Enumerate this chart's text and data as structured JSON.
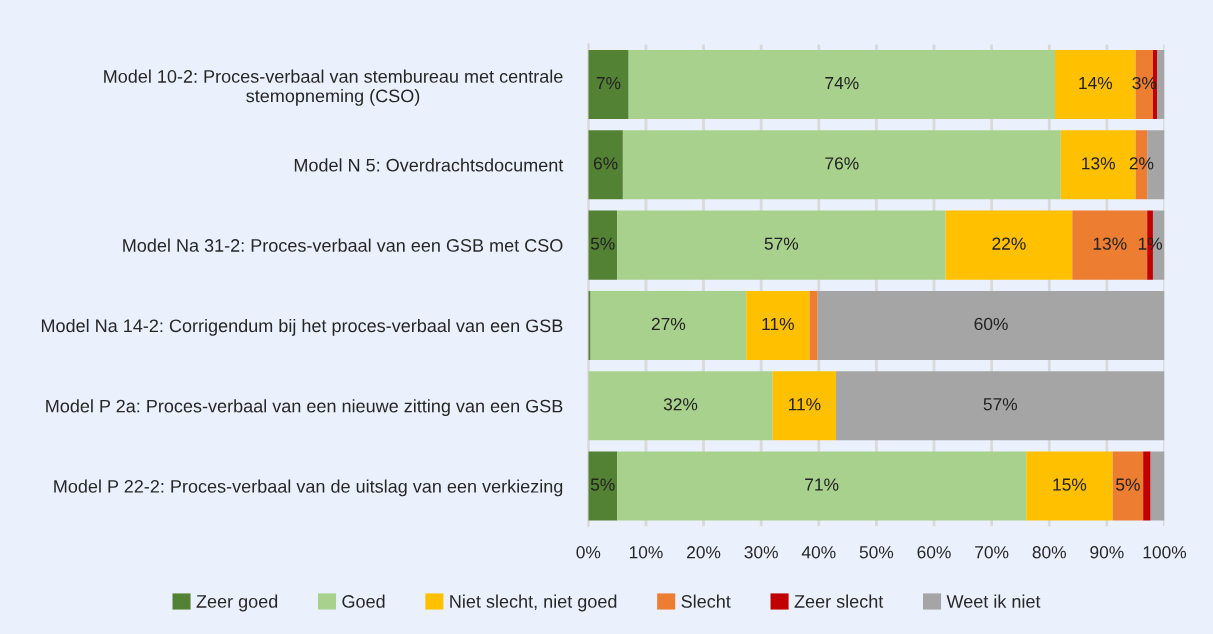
{
  "chart_data": {
    "type": "bar",
    "orientation": "horizontal",
    "stacked": true,
    "categories": [
      "Model 10-2: Proces-verbaal van stembureau met centrale stemopneming (CSO)",
      "Model N 5: Overdrachtsdocument",
      "Model Na 31-2: Proces-verbaal van een GSB met CSO",
      "Model Na 14-2: Corrigendum bij het proces-verbaal van een GSB",
      "Model P 2a: Proces-verbaal van een nieuwe zitting van een GSB",
      "Model P 22-2: Proces-verbaal van de uitslag van een verkiezing"
    ],
    "series": [
      {
        "name": "Zeer goed",
        "color": "#548235",
        "values": [
          7,
          6,
          5,
          0.4,
          0,
          5
        ],
        "value_labels": [
          "7%",
          "6%",
          "5%",
          null,
          null,
          "5%"
        ]
      },
      {
        "name": "Goed",
        "color": "#a9d18e",
        "values": [
          74,
          76,
          57,
          27,
          32,
          71
        ],
        "value_labels": [
          "74%",
          "76%",
          "57%",
          "27%",
          "32%",
          "71%"
        ]
      },
      {
        "name": "Niet slecht, niet goed",
        "color": "#ffc000",
        "values": [
          14,
          13,
          22,
          11,
          11,
          15
        ],
        "value_labels": [
          "14%",
          "13%",
          "22%",
          "11%",
          "11%",
          "15%"
        ]
      },
      {
        "name": "Slecht",
        "color": "#ed7d31",
        "values": [
          3,
          2,
          13,
          1.4,
          0,
          5.3
        ],
        "value_labels": [
          "3%",
          "2%",
          "13%",
          null,
          null,
          "5%"
        ]
      },
      {
        "name": "Zeer slecht",
        "color": "#c00000",
        "values": [
          0.7,
          0,
          1,
          0,
          0,
          1.3
        ],
        "value_labels": [
          null,
          null,
          "1%",
          null,
          null,
          null
        ]
      },
      {
        "name": "Weet ik niet",
        "color": "#a5a5a5",
        "values": [
          1.3,
          3,
          2,
          60.2,
          57,
          2.4
        ],
        "value_labels": [
          null,
          null,
          null,
          "60%",
          "57%",
          null
        ]
      }
    ],
    "xlim": [
      0,
      100
    ],
    "xticks": [
      {
        "value": 0,
        "label": "0%"
      },
      {
        "value": 10,
        "label": "10%"
      },
      {
        "value": 20,
        "label": "20%"
      },
      {
        "value": 30,
        "label": "30%"
      },
      {
        "value": 40,
        "label": "40%"
      },
      {
        "value": 50,
        "label": "50%"
      },
      {
        "value": 60,
        "label": "60%"
      },
      {
        "value": 70,
        "label": "70%"
      },
      {
        "value": 80,
        "label": "80%"
      },
      {
        "value": 90,
        "label": "90%"
      },
      {
        "value": 100,
        "label": "100%"
      }
    ],
    "grid": "x",
    "legend": "bottom"
  }
}
